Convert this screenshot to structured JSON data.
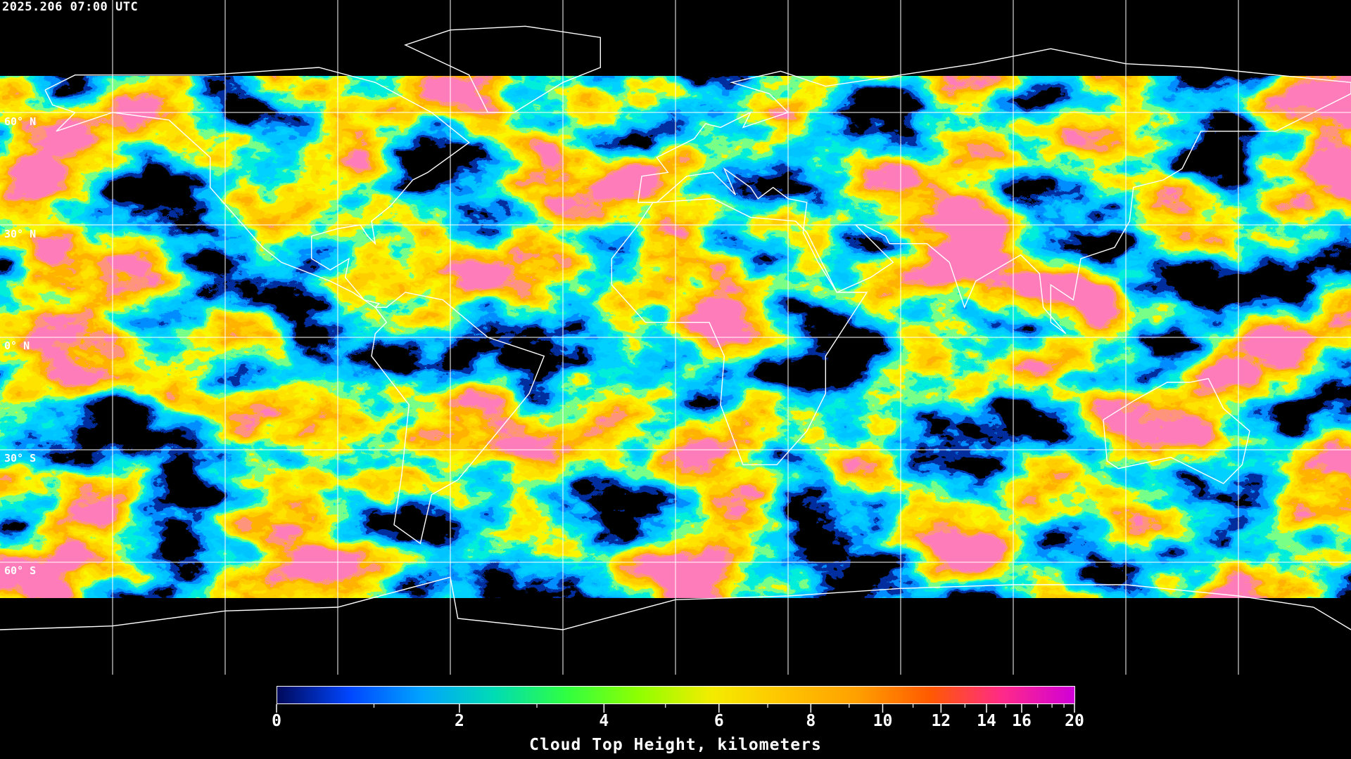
{
  "header": {
    "timestamp": "2025.206 07:00 UTC"
  },
  "map": {
    "projection": "equirectangular",
    "lat_labels": [
      "60° N",
      "30° N",
      "0° N",
      "30° S",
      "60° S"
    ],
    "gridlines": true,
    "grid_color": "#ffffff",
    "coastline_color": "#ffffff"
  },
  "colorbar": {
    "title": "Cloud Top Height, kilometers",
    "range": [
      0,
      20
    ],
    "major_ticks": [
      "0",
      "2",
      "4",
      "6",
      "8",
      "10",
      "12",
      "14",
      "16",
      "20"
    ],
    "minor_ticks": [
      1,
      3,
      5,
      7,
      9,
      11,
      13,
      15,
      17,
      18,
      19
    ],
    "colors": [
      "#00095a",
      "#0046ff",
      "#00a4ff",
      "#00dcb4",
      "#30ff40",
      "#90ff00",
      "#f4ec00",
      "#ffc400",
      "#ffa000",
      "#ff5a00",
      "#ff2a88",
      "#d000d8"
    ]
  }
}
